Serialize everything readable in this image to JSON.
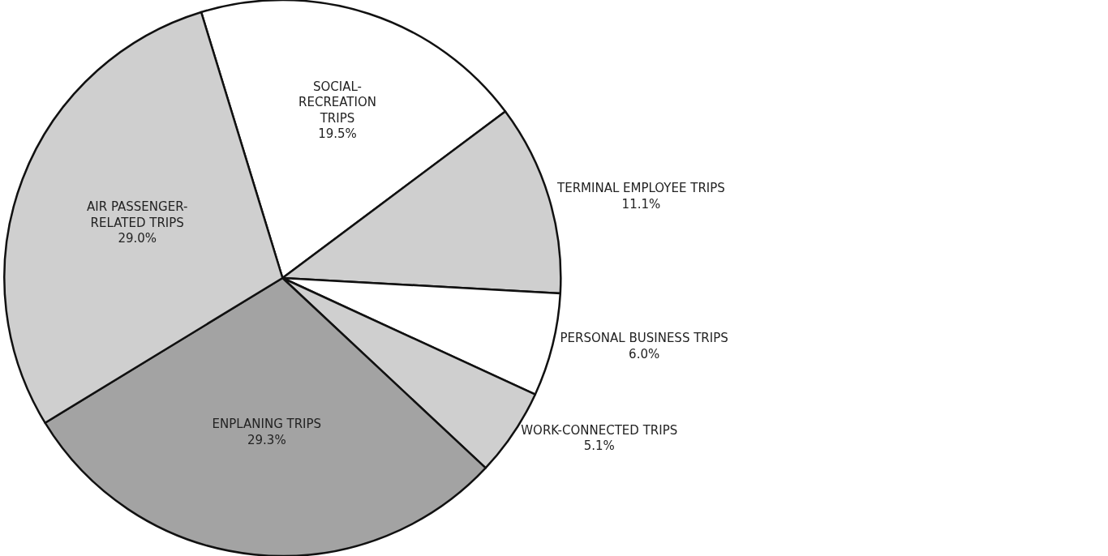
{
  "chart_data": {
    "type": "pie",
    "categories": [
      "SOCIAL-RECREATION TRIPS",
      "TERMINAL EMPLOYEE TRIPS",
      "PERSONAL BUSINESS TRIPS",
      "WORK-CONNECTED TRIPS",
      "ENPLANING TRIPS",
      "AIR PASSENGER-RELATED TRIPS"
    ],
    "values": [
      19.5,
      11.1,
      6.0,
      5.1,
      29.3,
      29.0
    ],
    "value_labels": [
      "19.5%",
      "11.1%",
      "6.0%",
      "5.1%",
      "29.3%",
      "29.0%"
    ],
    "colors": [
      "#ffffff",
      "#cfcfcf",
      "#ffffff",
      "#cfcfcf",
      "#a3a3a3",
      "#cfcfcf"
    ]
  }
}
